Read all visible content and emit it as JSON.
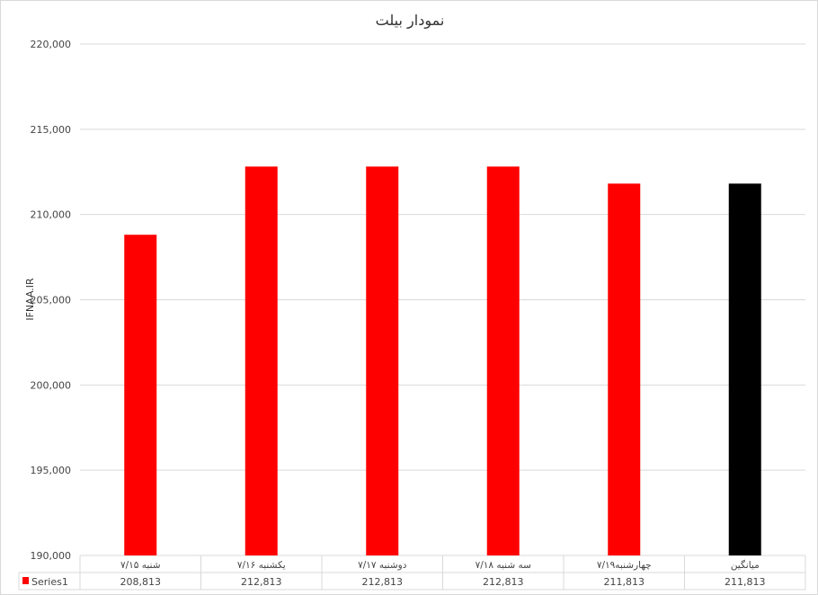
{
  "chart_data": {
    "type": "bar",
    "title": "نمودار بیلت",
    "ylabel": "IFNAA.IR",
    "xlabel": "",
    "categories": [
      "شنبه ۷/۱۵",
      "یکشنبه ۷/۱۶",
      "دوشنبه ۷/۱۷",
      "سه شنبه ۷/۱۸",
      "چهارشنبه۷/۱۹",
      "میانگین"
    ],
    "series": [
      {
        "name": "Series1",
        "values": [
          208813,
          212813,
          212813,
          212813,
          211813,
          211813
        ]
      }
    ],
    "value_labels": [
      "208,813",
      "212,813",
      "212,813",
      "212,813",
      "211,813",
      "211,813"
    ],
    "bar_colors": [
      "#ff0000",
      "#ff0000",
      "#ff0000",
      "#ff0000",
      "#ff0000",
      "#000000"
    ],
    "ylim": [
      190000,
      220000
    ],
    "yticks": [
      190000,
      195000,
      200000,
      205000,
      210000,
      215000,
      220000
    ],
    "ytick_labels": [
      "190,000",
      "195,000",
      "200,000",
      "205,000",
      "210,000",
      "215,000",
      "220,000"
    ],
    "grid": true,
    "legend": "data-table"
  }
}
